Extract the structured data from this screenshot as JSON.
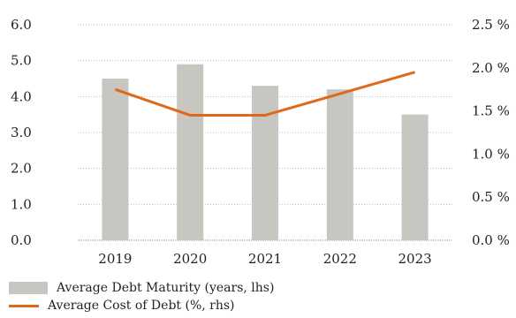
{
  "chart_data": {
    "type": "bar",
    "categories": [
      "2019",
      "2020",
      "2021",
      "2022",
      "2023"
    ],
    "series": [
      {
        "name": "Average Debt Maturity (years, lhs)",
        "kind": "bar",
        "axis": "left",
        "color": "#c8c6c1",
        "values": [
          4.5,
          4.9,
          4.3,
          4.2,
          3.5
        ]
      },
      {
        "name": "Average Cost of Debt (%, rhs)",
        "kind": "line",
        "axis": "right",
        "color": "#e0681a",
        "values": [
          1.75,
          1.45,
          1.45,
          1.7,
          1.95
        ]
      }
    ],
    "left_axis": {
      "ylim": [
        0,
        6
      ],
      "ticks": [
        "0.0",
        "1.0",
        "2.0",
        "3.0",
        "4.0",
        "5.0",
        "6.0"
      ]
    },
    "right_axis": {
      "ylim": [
        0,
        2.5
      ],
      "ticks": [
        "0.0 %",
        "0.5 %",
        "1.0 %",
        "1.5 %",
        "2.0 %",
        "2.5 %"
      ]
    },
    "grid": true,
    "legend_position": "bottom-left"
  }
}
